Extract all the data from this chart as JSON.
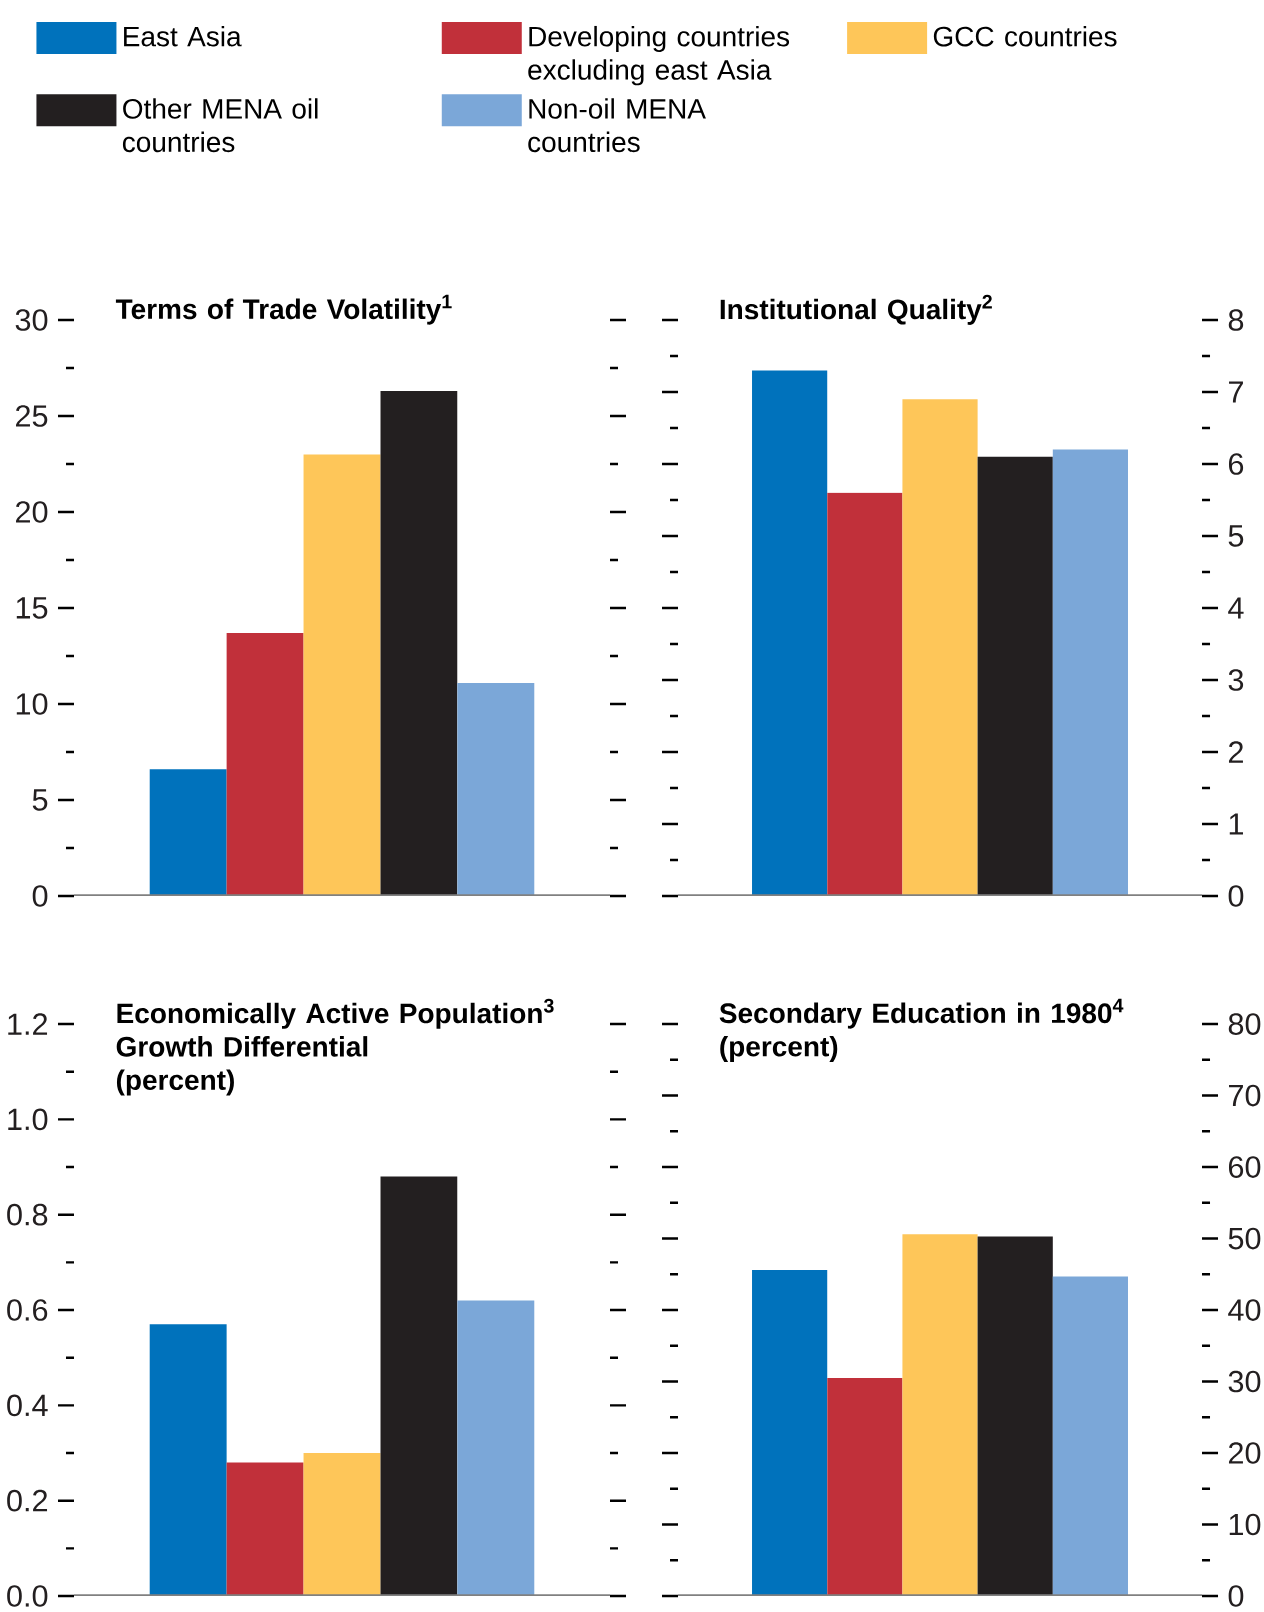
{
  "chart_data": [
    {
      "type": "bar",
      "title": "Terms of Trade Volatility$^{1}$",
      "categories": [
        null
      ],
      "legend": "top",
      "series": [
        {
          "name": "East Asia",
          "color": "#0072bc",
          "values": [
            6.6
          ]
        },
        {
          "name": "Developing countries excluding east Asia",
          "color": "#c1303a",
          "values": [
            13.7
          ]
        },
        {
          "name": "GCC countries",
          "color": "#fec659",
          "values": [
            23.0
          ]
        },
        {
          "name": "Other MENA oil countries",
          "color": "#231f20",
          "values": [
            26.3
          ]
        },
        {
          "name": "Non-oil MENA countries",
          "color": "#7ba7d8",
          "values": [
            11.1
          ]
        }
      ],
      "ylim": [
        0,
        30
      ],
      "yticks": [
        0,
        {
          "value": 2.5,
          "label": null
        },
        5,
        {
          "value": 7.5,
          "label": null
        },
        10,
        {
          "value": 12.5,
          "label": null
        },
        15,
        {
          "value": 17.5,
          "label": null
        },
        20,
        {
          "value": 22.5,
          "label": null
        },
        25,
        {
          "value": 27.5,
          "label": null
        },
        30
      ]
    },
    {
      "type": "bar",
      "title": "Institutional Quality$^{2}$",
      "categories": [
        null
      ],
      "series": [
        {
          "color": "#0072bc",
          "values": [
            7.3
          ]
        },
        {
          "color": "#c1303a",
          "values": [
            5.6
          ]
        },
        {
          "color": "#fec659",
          "values": [
            6.9
          ]
        },
        {
          "color": "#231f20",
          "values": [
            6.1
          ]
        },
        {
          "color": "#7ba7d8",
          "values": [
            6.2
          ]
        }
      ],
      "ylim": [
        0,
        8
      ],
      "yticks": [
        0,
        {
          "value": 0.5,
          "label": null
        },
        1,
        {
          "value": 1.5,
          "label": null
        },
        2,
        {
          "value": 2.5,
          "label": null
        },
        3,
        {
          "value": 3.5,
          "label": null
        },
        4,
        {
          "value": 4.5,
          "label": null
        },
        5,
        {
          "value": 5.5,
          "label": null
        },
        6,
        {
          "value": 6.5,
          "label": null
        },
        7,
        {
          "value": 7.5,
          "label": null
        },
        8
      ]
    },
    {
      "type": "bar",
      "title": "Economically Active Population$^{3}$ Growth Differential",
      "subtitle": "(percent)",
      "categories": [
        null
      ],
      "series": [
        {
          "color": "#0072bc",
          "values": [
            0.57
          ]
        },
        {
          "color": "#c1303a",
          "values": [
            0.28
          ]
        },
        {
          "color": "#fec659",
          "values": [
            0.3
          ]
        },
        {
          "color": "#231f20",
          "values": [
            0.88
          ]
        },
        {
          "color": "#7ba7d8",
          "values": [
            0.62
          ]
        }
      ],
      "ylim": [
        0,
        1.2
      ],
      "yticks": [
        {
          "value": 0,
          "label": "0.0"
        },
        {
          "value": 0.1,
          "label": null
        },
        0.2,
        {
          "value": 0.3,
          "label": null
        },
        0.4,
        {
          "value": 0.5,
          "label": null
        },
        0.6,
        {
          "value": 0.7,
          "label": null
        },
        0.8,
        {
          "value": 0.9,
          "label": null
        },
        {
          "value": 1,
          "label": "1.0"
        },
        {
          "value": 1.1,
          "label": null
        },
        1.2
      ]
    },
    {
      "type": "bar",
      "title": "Secondary Education in 1980$^{4}$",
      "subtitle": "(percent)",
      "categories": [
        null
      ],
      "series": [
        {
          "color": "#0072bc",
          "values": [
            45.6
          ]
        },
        {
          "color": "#c1303a",
          "values": [
            30.5
          ]
        },
        {
          "color": "#fec659",
          "values": [
            50.6
          ]
        },
        {
          "color": "#231f20",
          "values": [
            50.3
          ]
        },
        {
          "color": "#7ba7d8",
          "values": [
            44.7
          ]
        }
      ],
      "ylim": [
        0,
        80
      ],
      "yticks": [
        0,
        {
          "value": 5,
          "label": null
        },
        10,
        {
          "value": 15,
          "label": null
        },
        20,
        {
          "value": 25,
          "label": null
        },
        30,
        {
          "value": 35,
          "label": null
        },
        40,
        {
          "value": 45,
          "label": null
        },
        50,
        {
          "value": 55,
          "label": null
        },
        60,
        {
          "value": 65,
          "label": null
        },
        70,
        {
          "value": 75,
          "label": null
        },
        80
      ]
    }
  ]
}
